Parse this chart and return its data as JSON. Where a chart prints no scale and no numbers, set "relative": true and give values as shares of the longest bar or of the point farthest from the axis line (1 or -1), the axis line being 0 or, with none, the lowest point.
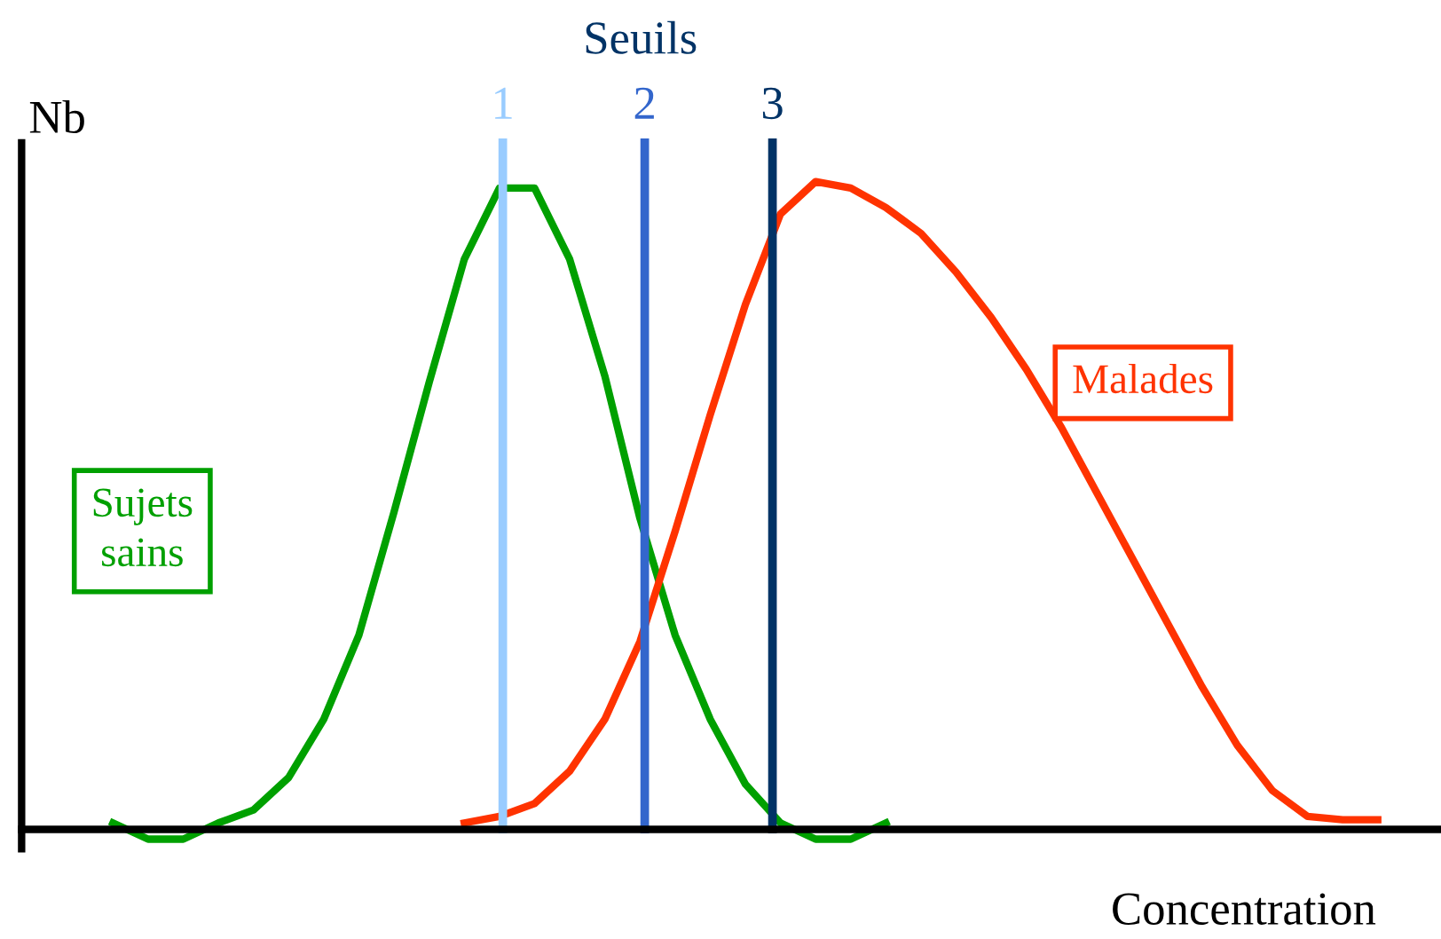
{
  "chart_data": {
    "type": "line",
    "relative": true,
    "xlabel": "Concentration",
    "ylabel": "Nb",
    "categories": [
      null,
      null,
      null,
      null,
      null,
      null,
      null,
      null,
      null,
      null,
      null,
      null,
      null,
      null,
      null,
      null,
      null,
      null,
      null,
      null,
      null,
      null,
      null,
      null,
      null,
      null,
      null,
      null,
      null,
      null,
      null,
      null,
      null,
      null,
      null,
      null,
      null,
      null,
      null,
      null
    ],
    "series": [
      {
        "name": "Sujets\nsains",
        "color": "#00a000",
        "values": [
          null,
          null,
          0.01,
          -0.015,
          -0.015,
          0.01,
          0.03,
          0.08,
          0.17,
          0.3,
          0.49,
          0.69,
          0.88,
          0.99,
          0.99,
          0.88,
          0.7,
          0.48,
          0.3,
          0.17,
          0.07,
          0.01,
          -0.015,
          -0.015,
          0.01,
          null,
          null,
          null,
          null,
          null,
          null,
          null,
          null,
          null,
          null,
          null,
          null,
          null,
          null,
          null
        ]
      },
      {
        "name": "Malades",
        "color": "#ff3300",
        "values": [
          null,
          null,
          null,
          null,
          null,
          null,
          null,
          null,
          null,
          null,
          null,
          null,
          0.01,
          0.02,
          0.04,
          0.09,
          0.17,
          0.29,
          0.46,
          0.64,
          0.81,
          0.95,
          1.0,
          0.99,
          0.96,
          0.92,
          0.86,
          0.79,
          0.71,
          0.62,
          0.52,
          0.42,
          0.32,
          0.22,
          0.13,
          0.06,
          0.02,
          0.015,
          0.015,
          null
        ]
      }
    ],
    "annotations": [
      "Seuils",
      "1",
      "2",
      "3"
    ],
    "legend": false,
    "marker": "none",
    "line_style": "solid"
  }
}
